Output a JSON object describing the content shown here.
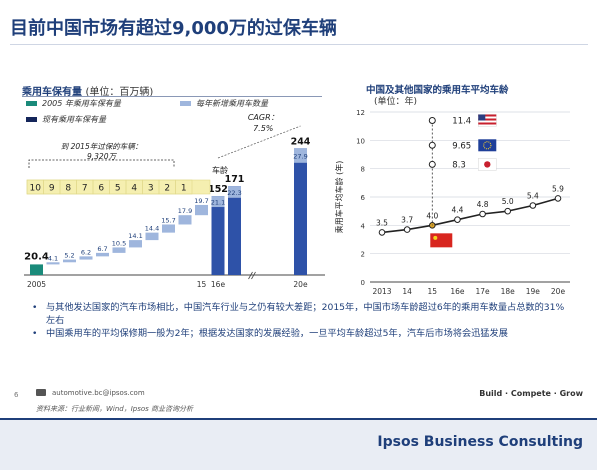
{
  "page": {
    "title": "目前中国市场有超过9,000万的过保车辆",
    "page_number": "6",
    "email": "automotive.bc@ipsos.com",
    "source": "资料来源：行业新闻，Wind，Ipsos 商业咨询分析",
    "tagline": "Build · Compete · Grow",
    "brand": "Ipsos Business Consulting"
  },
  "colors": {
    "accent": "#1f3f7a",
    "teal": "#1a8a7a",
    "light_blue": "#9fb6dd",
    "dark_navy": "#14255a",
    "bar_blue": "#2e52a8",
    "age_band": "#f5efb0",
    "china_red": "#d8261f"
  },
  "chart_data": [
    {
      "type": "bar",
      "title": "乘用车保有量",
      "unit": "(单位：百万辆)",
      "legend": [
        {
          "label": "2005 年乘用车保有量",
          "color": "teal"
        },
        {
          "label": "每年新增乘用车数量",
          "color": "light_blue"
        },
        {
          "label": "现有乘用车保有量",
          "color": "dark_navy"
        }
      ],
      "categories": [
        "2005",
        "",
        "",
        "",
        "",
        "",
        "",
        "",
        "",
        "",
        "15",
        "16e",
        "",
        "",
        "",
        "",
        "20e"
      ],
      "base_value": 20.4,
      "base_label": "20.4",
      "increments": [
        4.1,
        5.2,
        6.2,
        6.7,
        10.5,
        14.1,
        14.4,
        15.7,
        17.9,
        19.7
      ],
      "age_band_label": "车龄",
      "age_values": [
        "10",
        "9",
        "8",
        "7",
        "6",
        "5",
        "4",
        "3",
        "2",
        "1"
      ],
      "bracket_note_line1": "到 2015年过保的车辆：",
      "bracket_note_line2": "9,320万",
      "totals": [
        {
          "x_label": "15",
          "total": 152,
          "increment": 21.1
        },
        {
          "x_label": "16e",
          "total": 171,
          "increment": 22.3
        },
        {
          "x_label": "20e",
          "total": 244,
          "increment": 27.9
        }
      ],
      "cagr_label_line1": "CAGR：",
      "cagr_label_line2": "7.5%",
      "ylim": [
        0,
        260
      ]
    },
    {
      "type": "line",
      "title": "中国及其他国家的乘用车平均车龄",
      "subtitle": "(单位：年)",
      "ylabel": "乘用车平均车龄 (年)",
      "y_ticks": [
        0,
        2,
        4,
        6,
        8,
        10,
        12
      ],
      "ylim": [
        0,
        12
      ],
      "x": [
        "2013",
        "14",
        "15",
        "16e",
        "17e",
        "18e",
        "19e",
        "20e"
      ],
      "china_series": [
        3.5,
        3.7,
        4.0,
        4.4,
        4.8,
        5.0,
        5.4,
        5.9
      ],
      "china_labels": [
        "3.5",
        "3.7",
        "4.0",
        "4.4",
        "4.8",
        "5.0",
        "5.4",
        "5.9"
      ],
      "comparison_points": [
        {
          "country": "us",
          "value": 11.4,
          "label": "11.4"
        },
        {
          "country": "eu",
          "value": 9.65,
          "label": "9.65"
        },
        {
          "country": "jp",
          "value": 8.3,
          "label": "8.3"
        }
      ]
    }
  ],
  "bullets": [
    "与其他发达国家的汽车市场相比，中国汽车行业与之仍有较大差距；2015年，中国市场车龄超过6年的乘用车数量占总数的31%左右",
    "中国乘用车的平均保修期一般为2年；根据发达国家的发展经验，一旦平均车龄超过5年，汽车后市场将会迅猛发展"
  ]
}
